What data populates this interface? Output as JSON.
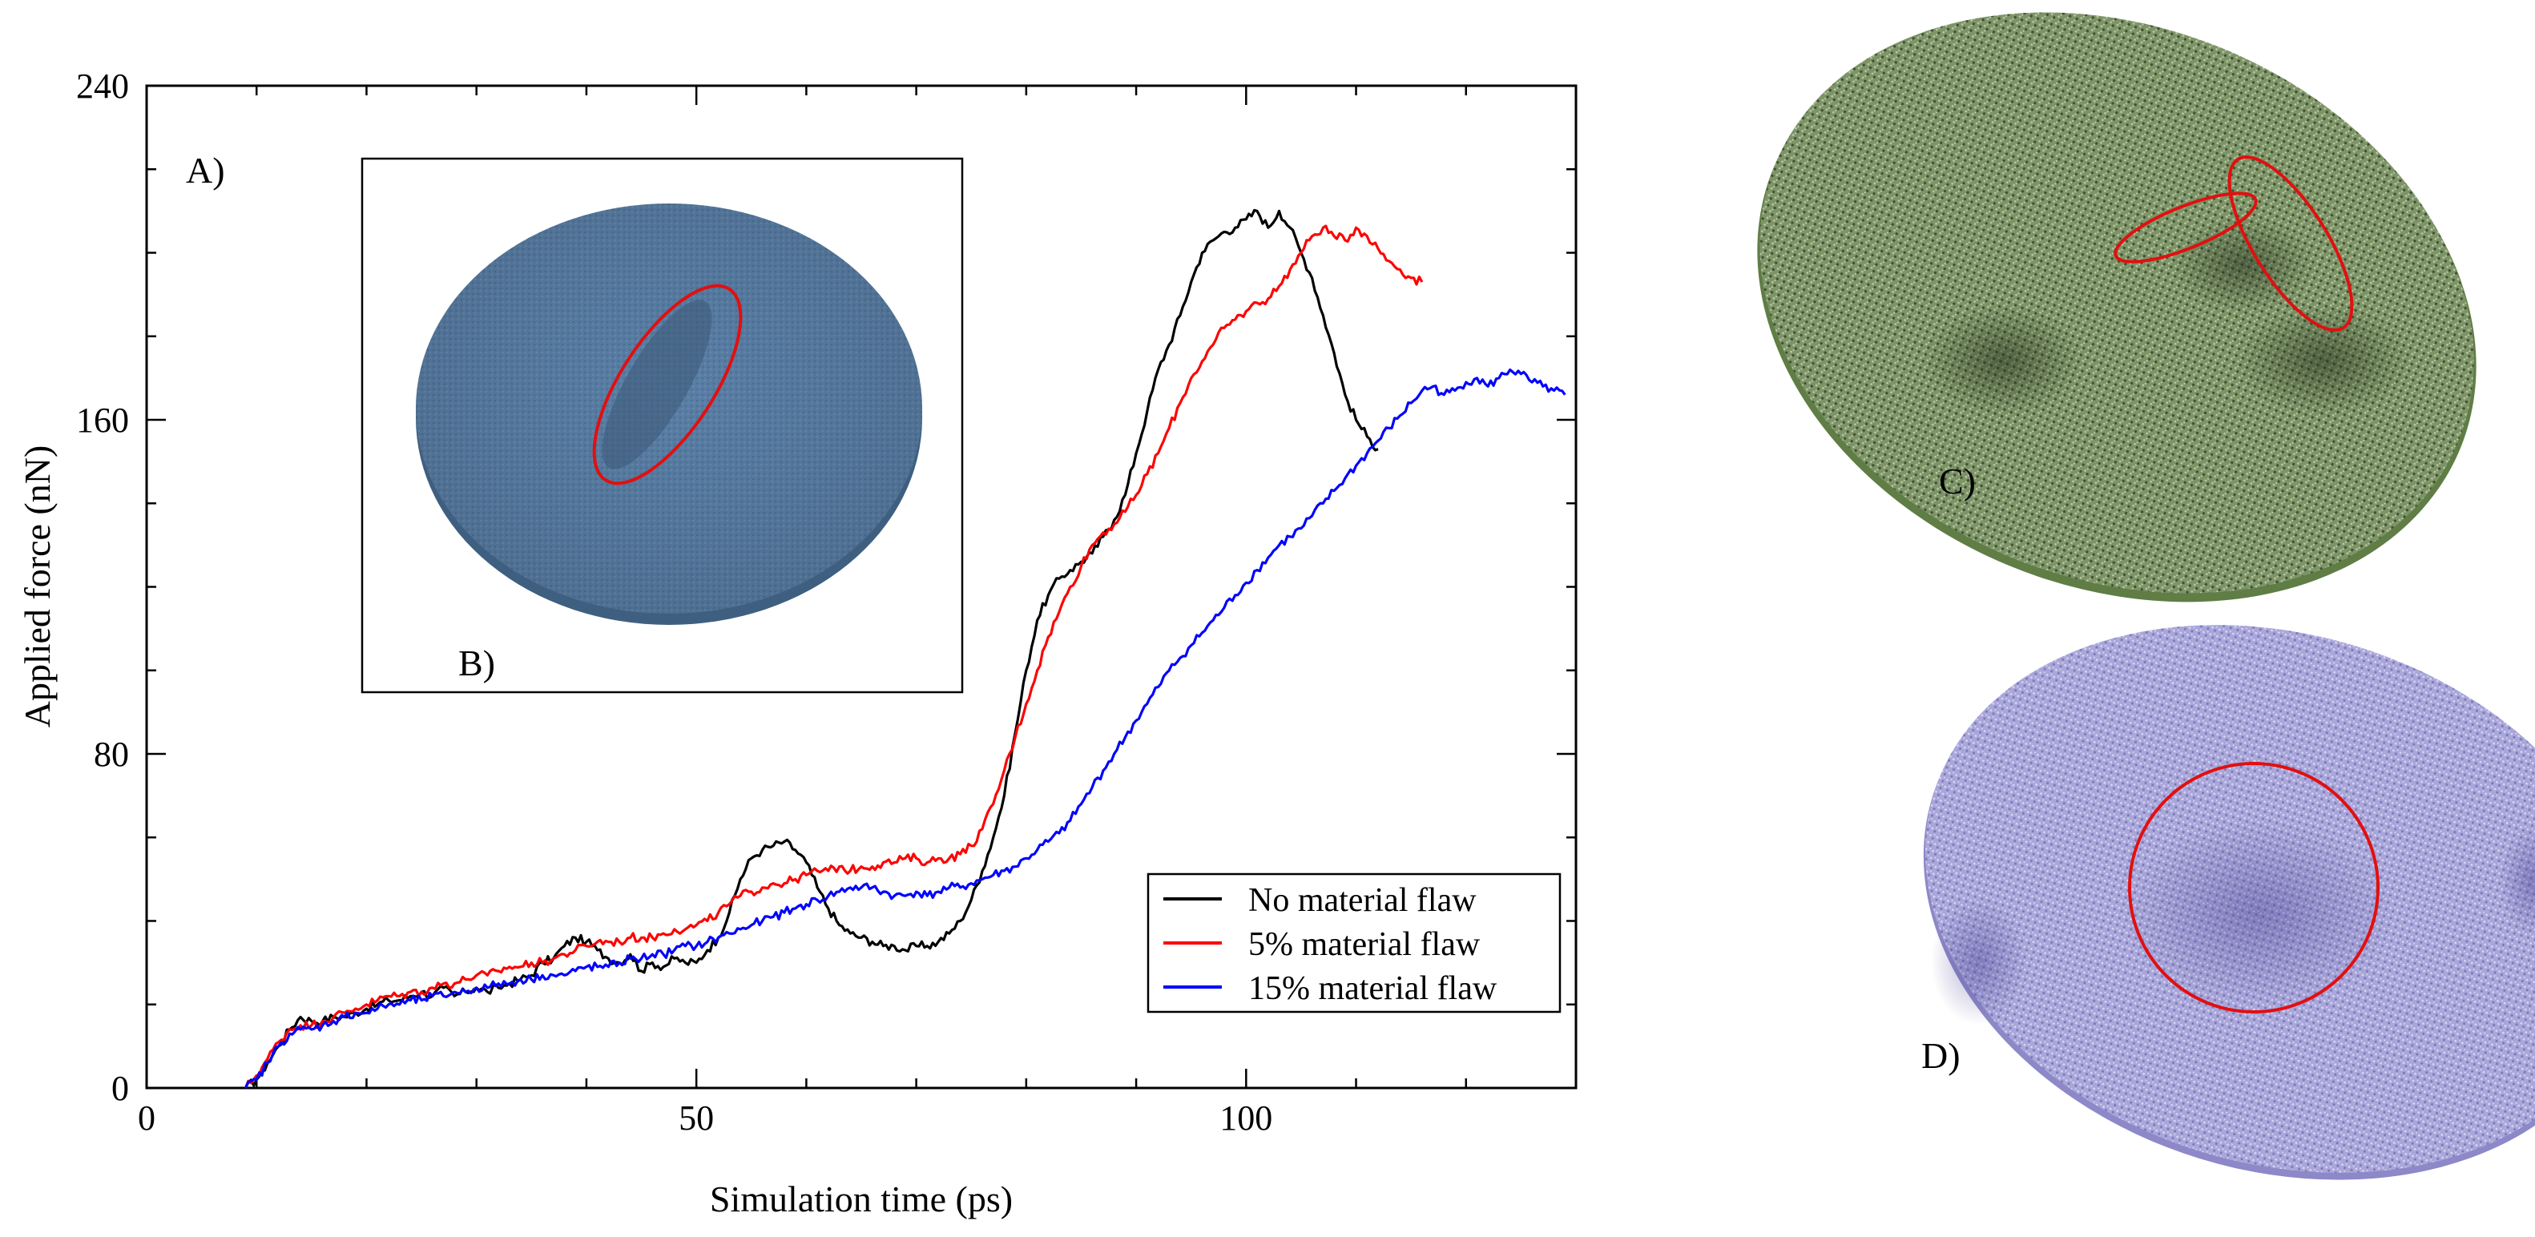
{
  "chart_data": {
    "type": "line",
    "title": "",
    "xlabel": "Simulation time (ps)",
    "ylabel": "Applied force (nN)",
    "xlim": [
      0,
      130
    ],
    "ylim": [
      0,
      240
    ],
    "xticks": [
      0,
      50,
      100
    ],
    "xtick_labels": [
      "0",
      "50",
      "100"
    ],
    "yticks": [
      0,
      80,
      160,
      240
    ],
    "ytick_labels": [
      "0",
      "80",
      "160",
      "240"
    ],
    "legend_position": "bottom-right",
    "series": [
      {
        "name": "No material flaw",
        "color": "#000000",
        "x": [
          9,
          10,
          11,
          12,
          13,
          14,
          15,
          16,
          17,
          18,
          19,
          20,
          21,
          22,
          23,
          24,
          25,
          26,
          27,
          28,
          29,
          30,
          31,
          32,
          33,
          34,
          35,
          36,
          37,
          38,
          39,
          40,
          41,
          42,
          43,
          44,
          45,
          46,
          47,
          48,
          49,
          50,
          51,
          52,
          53,
          54,
          55,
          56,
          57,
          58,
          59,
          60,
          61,
          62,
          63,
          64,
          65,
          66,
          67,
          68,
          69,
          70,
          71,
          72,
          73,
          74,
          75,
          76,
          77,
          78,
          79,
          80,
          81,
          82,
          83,
          84,
          85,
          86,
          87,
          88,
          89,
          90,
          91,
          92,
          93,
          94,
          95,
          96,
          97,
          98,
          99,
          100,
          101,
          102,
          103,
          104,
          105,
          106,
          107,
          108,
          109,
          110,
          111,
          112
        ],
        "values": [
          0,
          2,
          6,
          10,
          14,
          17,
          16,
          16,
          17,
          17,
          18,
          19,
          20,
          21,
          21,
          22,
          23,
          22,
          24,
          22,
          23,
          24,
          23,
          24,
          25,
          26,
          27,
          30,
          31,
          34,
          36,
          35,
          33,
          31,
          30,
          32,
          28,
          30,
          29,
          31,
          30,
          30,
          33,
          36,
          42,
          50,
          55,
          57,
          58,
          59,
          57,
          54,
          48,
          43,
          39,
          37,
          36,
          35,
          34,
          34,
          33,
          34,
          34,
          35,
          37,
          40,
          45,
          52,
          60,
          70,
          85,
          100,
          112,
          118,
          122,
          124,
          126,
          128,
          132,
          136,
          142,
          152,
          162,
          172,
          178,
          185,
          193,
          200,
          203,
          205,
          206,
          208,
          210,
          206,
          210,
          206,
          200,
          194,
          185,
          176,
          166,
          160,
          156,
          153
        ]
      },
      {
        "name": "5% material flaw",
        "color": "#ff0000",
        "x": [
          9,
          10,
          11,
          12,
          13,
          14,
          15,
          16,
          17,
          18,
          19,
          20,
          21,
          22,
          23,
          24,
          25,
          26,
          27,
          28,
          29,
          30,
          31,
          32,
          33,
          34,
          35,
          36,
          37,
          38,
          39,
          40,
          41,
          42,
          43,
          44,
          45,
          46,
          47,
          48,
          49,
          50,
          51,
          52,
          53,
          54,
          55,
          56,
          57,
          58,
          59,
          60,
          61,
          62,
          63,
          64,
          65,
          66,
          67,
          68,
          69,
          70,
          71,
          72,
          73,
          74,
          75,
          76,
          77,
          78,
          79,
          80,
          81,
          82,
          83,
          84,
          85,
          86,
          87,
          88,
          89,
          90,
          91,
          92,
          93,
          94,
          95,
          96,
          97,
          98,
          99,
          100,
          101,
          102,
          103,
          104,
          105,
          106,
          107,
          108,
          109,
          110,
          111,
          112,
          113,
          114,
          115,
          116
        ],
        "values": [
          0,
          3,
          7,
          11,
          14,
          15,
          15,
          16,
          17,
          18,
          19,
          20,
          21,
          22,
          22,
          23,
          23,
          24,
          25,
          25,
          26,
          27,
          27,
          28,
          29,
          29,
          30,
          30,
          31,
          32,
          33,
          34,
          35,
          35,
          35,
          36,
          36,
          36,
          37,
          38,
          38,
          39,
          40,
          42,
          44,
          46,
          47,
          48,
          49,
          49,
          50,
          51,
          52,
          52,
          53,
          52,
          53,
          53,
          54,
          54,
          55,
          55,
          54,
          55,
          55,
          56,
          58,
          62,
          68,
          76,
          84,
          92,
          100,
          108,
          114,
          120,
          125,
          130,
          133,
          135,
          138,
          142,
          147,
          152,
          158,
          164,
          170,
          174,
          178,
          182,
          184,
          186,
          188,
          189,
          192,
          196,
          200,
          204,
          206,
          204,
          203,
          206,
          204,
          201,
          198,
          196,
          194,
          193
        ]
      },
      {
        "name": "15% material flaw",
        "color": "#0000ff",
        "x": [
          9,
          10,
          11,
          12,
          13,
          14,
          15,
          16,
          17,
          18,
          19,
          20,
          21,
          22,
          23,
          24,
          25,
          26,
          27,
          28,
          29,
          30,
          31,
          32,
          33,
          34,
          35,
          36,
          37,
          38,
          39,
          40,
          41,
          42,
          43,
          44,
          45,
          46,
          47,
          48,
          49,
          50,
          51,
          52,
          53,
          54,
          55,
          56,
          57,
          58,
          59,
          60,
          61,
          62,
          63,
          64,
          65,
          66,
          67,
          68,
          69,
          70,
          71,
          72,
          73,
          74,
          75,
          76,
          77,
          78,
          79,
          80,
          81,
          82,
          83,
          84,
          85,
          86,
          87,
          88,
          89,
          90,
          91,
          92,
          93,
          94,
          95,
          96,
          97,
          98,
          99,
          100,
          101,
          102,
          103,
          104,
          105,
          106,
          107,
          108,
          109,
          110,
          111,
          112,
          113,
          114,
          115,
          116,
          117,
          118,
          119,
          120,
          121,
          122,
          123,
          124,
          125,
          126,
          127,
          128,
          129
        ],
        "values": [
          0,
          2,
          6,
          10,
          13,
          14,
          14,
          15,
          16,
          17,
          18,
          18,
          19,
          20,
          20,
          21,
          21,
          22,
          22,
          23,
          23,
          24,
          24,
          25,
          25,
          26,
          26,
          27,
          27,
          27,
          28,
          29,
          29,
          29,
          30,
          31,
          31,
          32,
          32,
          33,
          34,
          34,
          35,
          36,
          37,
          38,
          39,
          40,
          41,
          42,
          43,
          44,
          45,
          46,
          47,
          48,
          48,
          48,
          47,
          46,
          46,
          47,
          46,
          47,
          48,
          48,
          49,
          50,
          51,
          52,
          53,
          55,
          57,
          59,
          61,
          64,
          68,
          72,
          76,
          80,
          84,
          88,
          92,
          96,
          100,
          103,
          106,
          109,
          112,
          115,
          118,
          121,
          124,
          127,
          130,
          132,
          134,
          137,
          140,
          143,
          146,
          149,
          152,
          155,
          158,
          161,
          164,
          167,
          168,
          166,
          167,
          169,
          170,
          168,
          170,
          172,
          171,
          169,
          168,
          167,
          166
        ]
      }
    ]
  },
  "insets": {
    "A": {
      "label": "A)"
    },
    "B": {
      "label": "B)",
      "shape": "blue atomistic disk with elongated flaw",
      "color": "#5a7fa6"
    },
    "C": {
      "label": "C)",
      "shape": "green atomistic disk with two flaws",
      "color": "#6f8757"
    },
    "D": {
      "label": "D)",
      "shape": "purple atomistic disk with circular flaw region",
      "color": "#9c98d0"
    },
    "highlight_color": "#e01010"
  }
}
